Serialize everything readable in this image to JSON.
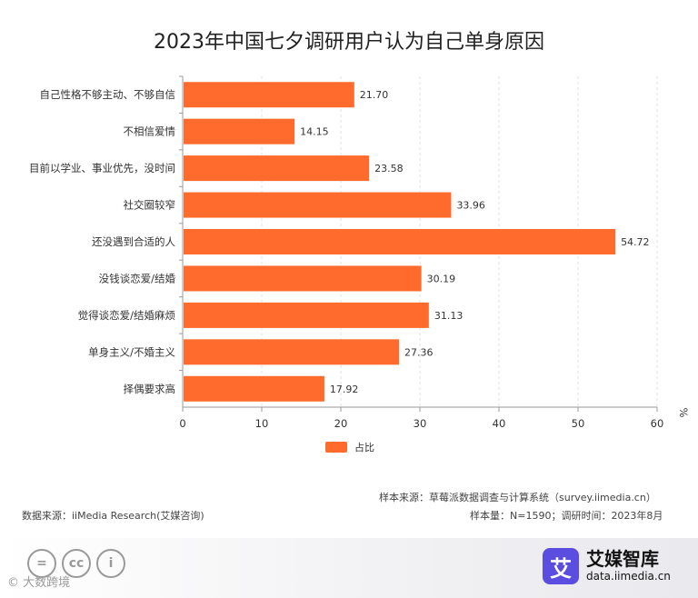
{
  "chart_data": {
    "type": "bar",
    "orientation": "horizontal",
    "title": "2023年中国七夕调研用户认为自己单身原因",
    "categories": [
      "自己性格不够主动、不够自信",
      "不相信爱情",
      "目前以学业、事业优先，没时间",
      "社交圈较窄",
      "还没遇到合适的人",
      "没钱谈恋爱/结婚",
      "觉得谈恋爱/结婚麻烦",
      "单身主义/不婚主义",
      "择偶要求高"
    ],
    "values": [
      21.7,
      14.15,
      23.58,
      33.96,
      54.72,
      30.19,
      31.13,
      27.36,
      17.92
    ],
    "value_labels": [
      "21.70",
      "14.15",
      "23.58",
      "33.96",
      "54.72",
      "30.19",
      "31.13",
      "27.36",
      "17.92"
    ],
    "series_name": "占比",
    "xlim": [
      0,
      60
    ],
    "xticks": [
      0,
      10,
      20,
      30,
      40,
      50,
      60
    ],
    "xtick_labels": [
      "0",
      "10",
      "20",
      "30",
      "40",
      "50",
      "60"
    ],
    "unit": "%",
    "grid": "vertical dashed",
    "bar_color": "#ff6b2c",
    "legend_position": "bottom-center"
  },
  "notes": {
    "sample_source": "样本来源：草莓派数据调查与计算系统（survey.iimedia.cn）",
    "data_source": "数据来源：iiMedia Research(艾媒咨询)",
    "sample_info": "样本量：N=1590；调研时间：2023年8月"
  },
  "watermark": {
    "cc_symbols": [
      "=",
      "cc",
      "i"
    ],
    "text": "© 大数跨境"
  },
  "brand": {
    "mark": "艾",
    "name": "艾媒智库",
    "url": "data.iimedia.cn"
  }
}
